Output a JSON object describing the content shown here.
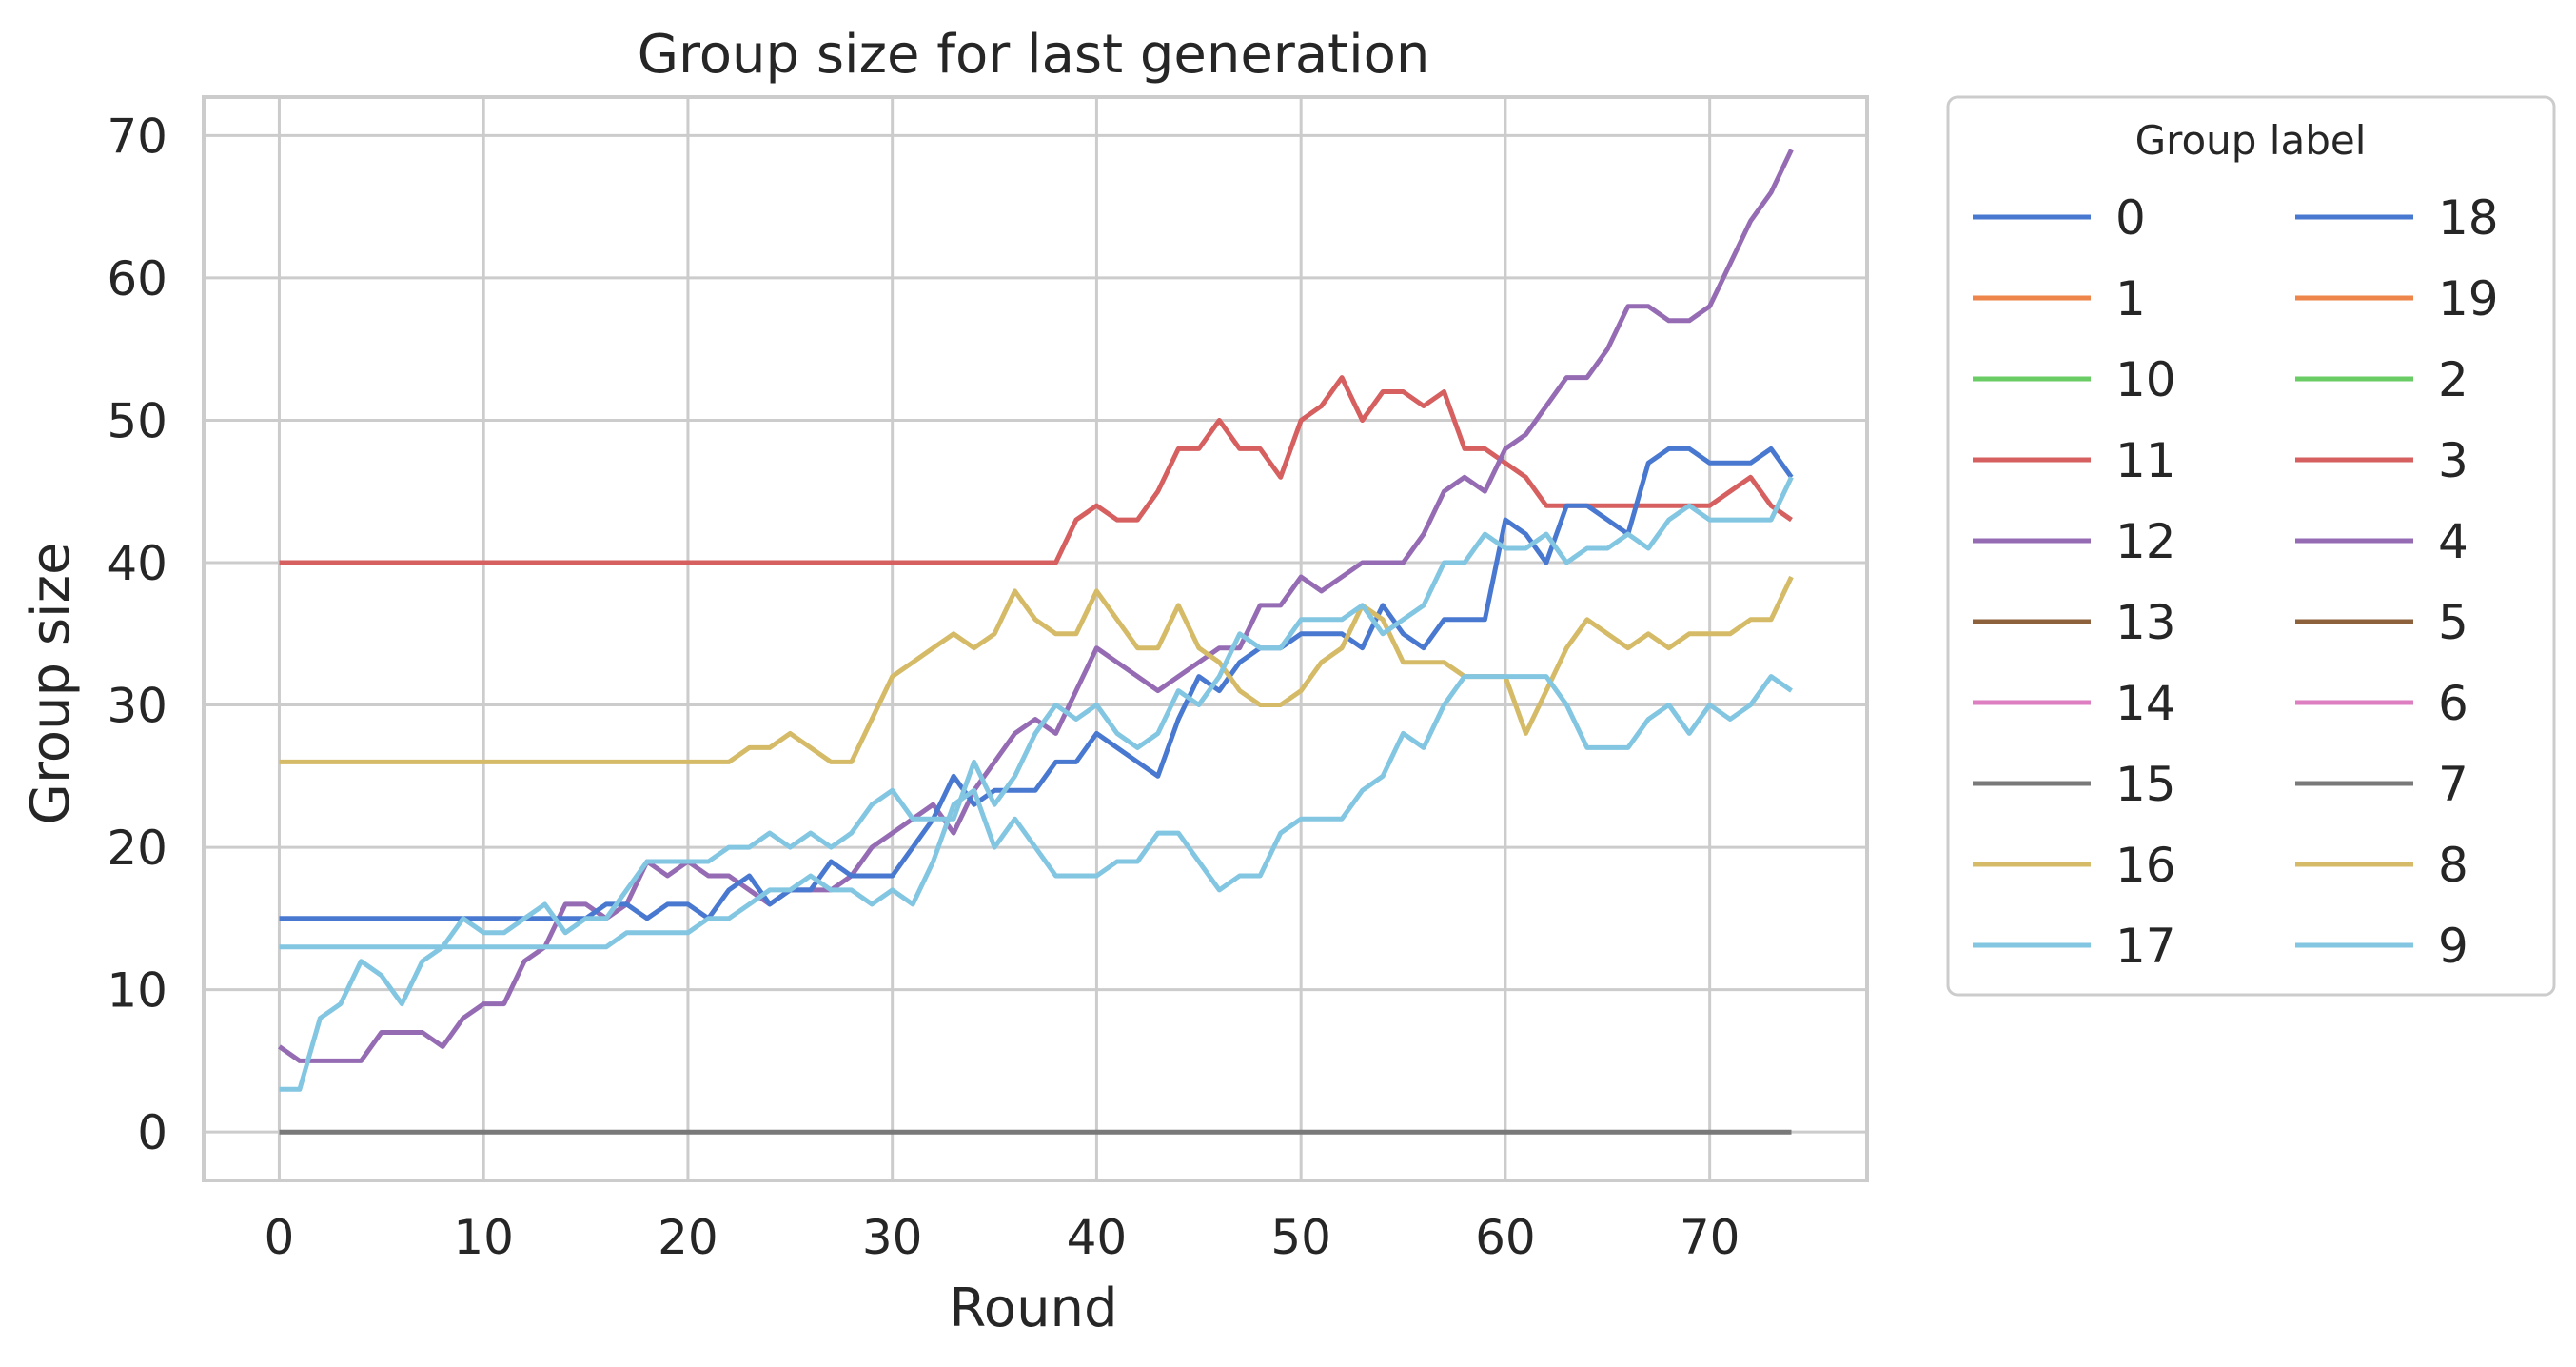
{
  "chart_data": {
    "type": "line",
    "title": "Group size for last generation",
    "xlabel": "Round",
    "ylabel": "Group size",
    "xlim": [
      -3.7,
      77.7
    ],
    "ylim": [
      -3.4,
      72.7
    ],
    "xticks": [
      0,
      10,
      20,
      30,
      40,
      50,
      60,
      70
    ],
    "yticks": [
      0,
      10,
      20,
      30,
      40,
      50,
      60,
      70
    ],
    "grid": true,
    "legend": {
      "title": "Group label",
      "placement": "outside-right",
      "columns": 2,
      "entries": [
        {
          "label": "0",
          "color": "#4878d0"
        },
        {
          "label": "1",
          "color": "#ee854a"
        },
        {
          "label": "10",
          "color": "#6acc64"
        },
        {
          "label": "11",
          "color": "#d65f5f"
        },
        {
          "label": "12",
          "color": "#956cb4"
        },
        {
          "label": "13",
          "color": "#8c613c"
        },
        {
          "label": "14",
          "color": "#dc7ec0"
        },
        {
          "label": "15",
          "color": "#797979"
        },
        {
          "label": "16",
          "color": "#d5bb67"
        },
        {
          "label": "17",
          "color": "#82c6e2"
        },
        {
          "label": "18",
          "color": "#4878d0"
        },
        {
          "label": "19",
          "color": "#ee854a"
        },
        {
          "label": "2",
          "color": "#6acc64"
        },
        {
          "label": "3",
          "color": "#d65f5f"
        },
        {
          "label": "4",
          "color": "#956cb4"
        },
        {
          "label": "5",
          "color": "#8c613c"
        },
        {
          "label": "6",
          "color": "#dc7ec0"
        },
        {
          "label": "7",
          "color": "#797979"
        },
        {
          "label": "8",
          "color": "#d5bb67"
        },
        {
          "label": "9",
          "color": "#82c6e2"
        }
      ]
    },
    "x_start": 0,
    "x_step": 1,
    "series": [
      {
        "name": "zero groups",
        "color": "#797979",
        "values": [
          0,
          0,
          0,
          0,
          0,
          0,
          0,
          0,
          0,
          0,
          0,
          0,
          0,
          0,
          0,
          0,
          0,
          0,
          0,
          0,
          0,
          0,
          0,
          0,
          0,
          0,
          0,
          0,
          0,
          0,
          0,
          0,
          0,
          0,
          0,
          0,
          0,
          0,
          0,
          0,
          0,
          0,
          0,
          0,
          0,
          0,
          0,
          0,
          0,
          0,
          0,
          0,
          0,
          0,
          0,
          0,
          0,
          0,
          0,
          0,
          0,
          0,
          0,
          0,
          0,
          0,
          0,
          0,
          0,
          0,
          0,
          0,
          0,
          0,
          0
        ]
      },
      {
        "name": "red",
        "color": "#d65f5f",
        "values": [
          40,
          40,
          40,
          40,
          40,
          40,
          40,
          40,
          40,
          40,
          40,
          40,
          40,
          40,
          40,
          40,
          40,
          40,
          40,
          40,
          40,
          40,
          40,
          40,
          40,
          40,
          40,
          40,
          40,
          40,
          40,
          40,
          40,
          40,
          40,
          40,
          40,
          40,
          40,
          43,
          44,
          43,
          43,
          45,
          48,
          48,
          50,
          48,
          48,
          46,
          50,
          51,
          53,
          50,
          52,
          52,
          51,
          52,
          48,
          48,
          47,
          46,
          44,
          44,
          44,
          44,
          44,
          44,
          44,
          44,
          44,
          45,
          46,
          44,
          43
        ]
      },
      {
        "name": "purple",
        "color": "#956cb4",
        "values": [
          6,
          5,
          5,
          5,
          5,
          7,
          7,
          7,
          6,
          8,
          9,
          9,
          12,
          13,
          16,
          16,
          15,
          16,
          19,
          18,
          19,
          18,
          18,
          17,
          16,
          17,
          17,
          17,
          18,
          20,
          21,
          22,
          23,
          21,
          24,
          26,
          28,
          29,
          28,
          31,
          34,
          33,
          32,
          31,
          32,
          33,
          34,
          34,
          37,
          37,
          39,
          38,
          39,
          40,
          40,
          40,
          42,
          45,
          46,
          45,
          48,
          49,
          51,
          53,
          53,
          55,
          58,
          58,
          57,
          57,
          58,
          61,
          64,
          66,
          69
        ]
      },
      {
        "name": "blue",
        "color": "#4878d0",
        "values": [
          15,
          15,
          15,
          15,
          15,
          15,
          15,
          15,
          15,
          15,
          15,
          15,
          15,
          15,
          15,
          15,
          16,
          16,
          15,
          16,
          16,
          15,
          17,
          18,
          16,
          17,
          17,
          19,
          18,
          18,
          18,
          20,
          22,
          25,
          23,
          24,
          24,
          24,
          26,
          26,
          28,
          27,
          26,
          25,
          29,
          32,
          31,
          33,
          34,
          34,
          35,
          35,
          35,
          34,
          37,
          35,
          34,
          36,
          36,
          36,
          43,
          42,
          40,
          44,
          44,
          43,
          42,
          47,
          48,
          48,
          47,
          47,
          47,
          48,
          46
        ]
      },
      {
        "name": "gold",
        "color": "#d5bb67",
        "values": [
          26,
          26,
          26,
          26,
          26,
          26,
          26,
          26,
          26,
          26,
          26,
          26,
          26,
          26,
          26,
          26,
          26,
          26,
          26,
          26,
          26,
          26,
          26,
          27,
          27,
          28,
          27,
          26,
          26,
          29,
          32,
          33,
          34,
          35,
          34,
          35,
          38,
          36,
          35,
          35,
          38,
          36,
          34,
          34,
          37,
          34,
          33,
          31,
          30,
          30,
          31,
          33,
          34,
          37,
          36,
          33,
          33,
          33,
          32,
          32,
          32,
          28,
          31,
          34,
          36,
          35,
          34,
          35,
          34,
          35,
          35,
          35,
          36,
          36,
          39
        ]
      },
      {
        "name": "light blue a",
        "color": "#82c6e2",
        "values": [
          13,
          13,
          13,
          13,
          13,
          13,
          13,
          13,
          13,
          13,
          13,
          13,
          13,
          13,
          13,
          13,
          13,
          14,
          14,
          14,
          14,
          15,
          15,
          16,
          17,
          17,
          18,
          17,
          17,
          16,
          17,
          16,
          19,
          23,
          24,
          20,
          22,
          20,
          18,
          18,
          18,
          19,
          19,
          21,
          21,
          19,
          17,
          18,
          18,
          21,
          22,
          22,
          22,
          24,
          25,
          28,
          27,
          30,
          32,
          32,
          32,
          32,
          32,
          30,
          27,
          27,
          27,
          29,
          30,
          28,
          30,
          29,
          30,
          32,
          31
        ]
      },
      {
        "name": "light blue b",
        "color": "#82c6e2",
        "values": [
          3,
          3,
          8,
          9,
          12,
          11,
          9,
          12,
          13,
          15,
          14,
          14,
          15,
          16,
          14,
          15,
          15,
          17,
          19,
          19,
          19,
          19,
          20,
          20,
          21,
          20,
          21,
          20,
          21,
          23,
          24,
          22,
          22,
          22,
          26,
          23,
          25,
          28,
          30,
          29,
          30,
          28,
          27,
          28,
          31,
          30,
          32,
          35,
          34,
          34,
          36,
          36,
          36,
          37,
          35,
          36,
          37,
          40,
          40,
          42,
          41,
          41,
          42,
          40,
          41,
          41,
          42,
          41,
          43,
          44,
          43,
          43,
          43,
          43,
          46
        ]
      }
    ]
  }
}
